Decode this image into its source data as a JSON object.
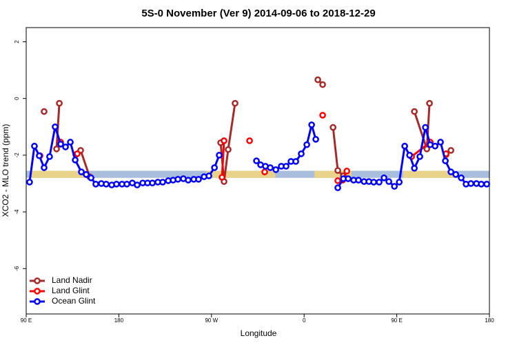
{
  "chart_data": {
    "type": "line",
    "title": "5S-0 November (Ver 9)   2014-09-06 to 2018-12-29",
    "xlabel": "Longitude",
    "ylabel": "XCO2 - MLO trend (ppm)",
    "xlim": [
      90,
      540
    ],
    "ylim": [
      -7.6,
      2.5
    ],
    "xticks": [
      {
        "value": 90,
        "label": "90 E"
      },
      180,
      {
        "value": 270,
        "label": "90 W"
      },
      {
        "value": 360,
        "label": "0"
      },
      {
        "value": 450,
        "label": "90 E"
      },
      {
        "value": 540,
        "label": "180"
      }
    ],
    "yticks": [
      2,
      0,
      -2,
      -4,
      -6
    ],
    "legend": "bottom-left",
    "band": {
      "ylim": [
        -2.8,
        -2.55
      ],
      "color": "#a9bedc",
      "land_color": "#f5d67a",
      "land": [
        [
          95,
          150
        ],
        [
          265,
          332
        ],
        [
          370,
          406
        ],
        [
          456,
          507
        ]
      ]
    },
    "series": [
      {
        "name": "Land Nadir",
        "color": "#a52a2a",
        "x": [
          107.4,
          null,
          119.5,
          122.2,
          null,
          138.2,
          142.9,
          151.6,
          null,
          278.9,
          282.2,
          286.2,
          292.9,
          null,
          373.3,
          378.0,
          null,
          388.1,
          392.7,
          398.1,
          null,
          467.1,
          479.2,
          481.8,
          null,
          497.9,
          502.6
        ],
        "values": [
          -0.46,
          null,
          -1.78,
          -0.17,
          null,
          -1.98,
          -1.83,
          -2.76,
          null,
          -1.56,
          -2.93,
          -1.8,
          -0.17,
          null,
          0.66,
          0.49,
          null,
          -1.02,
          -2.54,
          -2.73,
          null,
          -0.46,
          -1.78,
          -0.17,
          null,
          -1.98,
          -1.83
        ]
      },
      {
        "name": "Land Glint",
        "color": "#ff0000",
        "x": [
          103.4,
          null,
          123.5,
          null,
          139.6,
          null,
          280.2,
          282.2,
          null,
          307.0,
          null,
          321.7,
          null,
          378.0,
          null,
          392.7,
          397.4,
          401.5,
          null,
          464.4,
          482.5,
          null,
          497.9
        ],
        "values": [
          -2.02,
          null,
          -1.54,
          null,
          -1.95,
          null,
          -2.78,
          -1.49,
          null,
          -1.49,
          null,
          -2.59,
          null,
          -0.59,
          null,
          -2.9,
          -2.88,
          -2.56,
          null,
          -2.05,
          -1.54,
          null,
          -1.95
        ]
      },
      {
        "name": "Ocean Glint",
        "color": "#0000ff",
        "x": [
          93.3,
          98.0,
          102.7,
          107.4,
          112.7,
          118.1,
          123.5,
          128.2,
          132.9,
          137.6,
          143.6,
          148.3,
          153.0,
          157.6,
          163.0,
          167.7,
          173.1,
          177.7,
          183.1,
          187.8,
          193.1,
          197.8,
          203.2,
          207.9,
          212.6,
          217.9,
          222.6,
          228.0,
          232.7,
          237.4,
          242.7,
          247.4,
          252.8,
          257.4,
          262.8,
          267.5,
          272.9,
          277.5,
          null,
          313.7,
          317.7,
          322.4,
          327.1,
          332.5,
          337.8,
          342.5,
          347.2,
          351.9,
          357.2,
          362.6,
          367.3,
          371.3,
          null,
          392.7,
          398.1,
          402.8,
          408.1,
          412.8,
          418.2,
          422.9,
          427.6,
          432.9,
          437.6,
          442.3,
          447.7,
          452.4,
          457.7,
          462.4,
          467.1,
          472.4,
          477.8,
          482.5,
          487.2,
          492.5,
          497.2,
          502.6,
          507.3,
          512.6,
          517.3,
          522.0,
          527.4,
          532.1,
          537.4
        ],
        "values": [
          -2.95,
          -1.68,
          -2.02,
          -2.44,
          -2.05,
          -1.0,
          -1.61,
          -1.71,
          -1.54,
          -2.17,
          -2.59,
          -2.68,
          -2.8,
          -3.02,
          -3.0,
          -3.02,
          -3.05,
          -3.02,
          -3.02,
          -3.02,
          -2.98,
          -3.05,
          -2.98,
          -2.98,
          -2.98,
          -2.95,
          -2.95,
          -2.9,
          -2.88,
          -2.85,
          -2.83,
          -2.88,
          -2.85,
          -2.85,
          -2.76,
          -2.73,
          -2.44,
          -2.0,
          null,
          -2.2,
          -2.34,
          -2.39,
          -2.44,
          -2.51,
          -2.39,
          -2.39,
          -2.22,
          -2.22,
          -1.95,
          -1.63,
          -0.93,
          -1.44,
          null,
          -3.15,
          -2.83,
          -2.83,
          -2.88,
          -2.88,
          -2.93,
          -2.93,
          -2.95,
          -2.95,
          -2.8,
          -2.93,
          -3.1,
          -2.95,
          -1.68,
          -2.0,
          -2.46,
          -2.05,
          -1.02,
          -1.63,
          -1.68,
          -1.54,
          -2.2,
          -2.59,
          -2.68,
          -2.8,
          -3.02,
          -3.0,
          -3.0,
          -3.02,
          -3.02
        ]
      }
    ]
  }
}
